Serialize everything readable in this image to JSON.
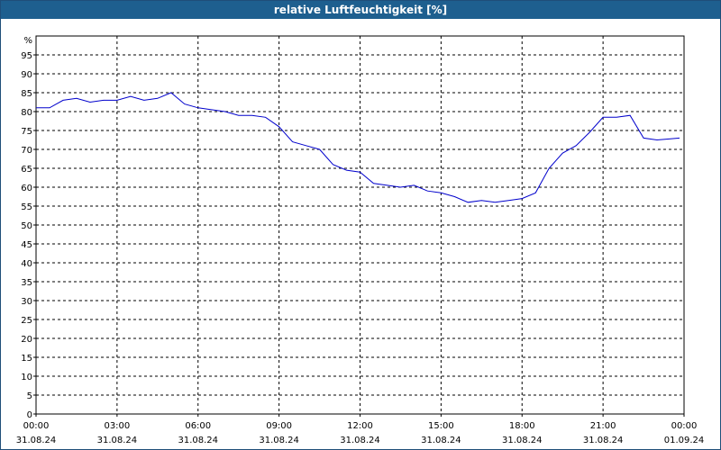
{
  "window": {
    "title": "relative Luftfeuchtigkeit [%]"
  },
  "chart_data": {
    "type": "line",
    "title": "relative Luftfeuchtigkeit [%]",
    "ylabel": "%",
    "xlabel": "",
    "ylim": [
      0,
      100
    ],
    "xlim": [
      "31.08.24 00:00",
      "01.09.24 00:00"
    ],
    "grid": true,
    "grid_style": "dashed",
    "line_color": "#0000cc",
    "y_ticks": [
      "0",
      "5",
      "10",
      "15",
      "20",
      "25",
      "30",
      "35",
      "40",
      "45",
      "50",
      "55",
      "60",
      "65",
      "70",
      "75",
      "80",
      "85",
      "90",
      "95"
    ],
    "x_ticks": [
      {
        "time": "00:00",
        "date": "31.08.24"
      },
      {
        "time": "03:00",
        "date": "31.08.24"
      },
      {
        "time": "06:00",
        "date": "31.08.24"
      },
      {
        "time": "09:00",
        "date": "31.08.24"
      },
      {
        "time": "12:00",
        "date": "31.08.24"
      },
      {
        "time": "15:00",
        "date": "31.08.24"
      },
      {
        "time": "18:00",
        "date": "31.08.24"
      },
      {
        "time": "21:00",
        "date": "31.08.24"
      },
      {
        "time": "00:00",
        "date": "01.09.24"
      }
    ],
    "series": [
      {
        "x": [
          "00:00",
          "00:30",
          "01:00",
          "01:30",
          "02:00",
          "02:30",
          "03:00",
          "03:30",
          "04:00",
          "04:30",
          "05:00",
          "05:30",
          "06:00",
          "06:30",
          "07:00",
          "07:30",
          "08:00",
          "08:30",
          "09:00",
          "09:30",
          "10:00",
          "10:30",
          "11:00",
          "11:30",
          "12:00",
          "12:30",
          "13:00",
          "13:30",
          "14:00",
          "14:30",
          "15:00",
          "15:30",
          "16:00",
          "16:30",
          "17:00",
          "17:30",
          "18:00",
          "18:30",
          "19:00",
          "19:30",
          "20:00",
          "20:30",
          "21:00",
          "21:30",
          "22:00",
          "22:30",
          "23:00",
          "23:30",
          "23:50"
        ],
        "values": [
          81,
          81,
          83,
          83.5,
          82.5,
          83,
          83,
          84,
          83,
          83.5,
          85,
          82,
          81,
          80.5,
          80,
          79,
          79,
          78.5,
          76,
          72,
          71,
          70,
          66,
          64.5,
          64,
          61,
          60.5,
          60,
          60.5,
          59,
          58.5,
          57.5,
          56,
          56.5,
          56,
          56.5,
          57,
          58.5,
          65,
          69,
          71,
          74.5,
          78.5,
          78.5,
          79,
          73,
          72.5,
          72.8,
          73
        ]
      }
    ]
  }
}
